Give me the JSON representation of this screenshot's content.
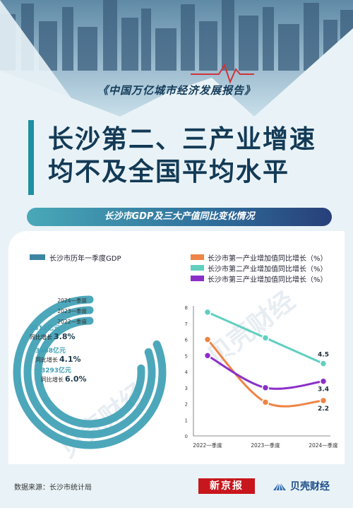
{
  "header": {
    "report_title": "《中国万亿城市经济发展报告》",
    "headline_line1": "长沙第二、三产业增速",
    "headline_line2": "均不及全国平均水平",
    "subtitle": "长沙市GDP及三大产值同比变化情况"
  },
  "colors": {
    "ring": "#3e9fb4",
    "primary": "#ee8446",
    "secondary": "#61cfc0",
    "tertiary": "#8b2fc9",
    "title": "#133a56"
  },
  "watermark": "贝壳财经",
  "chart_data": [
    {
      "type": "radial-bar",
      "legend": "长沙市历年一季度GDP",
      "categories": [
        "2024一季度",
        "2023一季度",
        "2022一季度"
      ],
      "values": [
        3512,
        3468,
        3293
      ],
      "value_labels": [
        "3512亿元",
        "3468亿元",
        "3293亿元"
      ],
      "growth_prefix": "同比增长",
      "growth": [
        "3.8%",
        "4.1%",
        "6.0%"
      ]
    },
    {
      "type": "line",
      "x": [
        "2022一季度",
        "2023一季度",
        "2024一季度"
      ],
      "ylim": [
        0,
        8
      ],
      "yticks": [
        "0",
        "1",
        "2",
        "3",
        "4",
        "5",
        "6",
        "7",
        "8"
      ],
      "series": [
        {
          "name": "长沙市第一产业增加值同比增长（%）",
          "values": [
            6.0,
            2.1,
            2.2
          ],
          "end_label": "2.2"
        },
        {
          "name": "长沙市第二产业增加值同比增长（%）",
          "values": [
            7.7,
            6.1,
            4.5
          ],
          "end_label": "4.5"
        },
        {
          "name": "长沙市第三产业增加值同比增长（%）",
          "values": [
            5.0,
            3.0,
            3.4
          ],
          "end_label": "3.4"
        }
      ]
    }
  ],
  "footer": {
    "source": "数据来源：长沙市统计局",
    "logo_xjb": "新京报",
    "logo_bk": "贝壳财经"
  }
}
